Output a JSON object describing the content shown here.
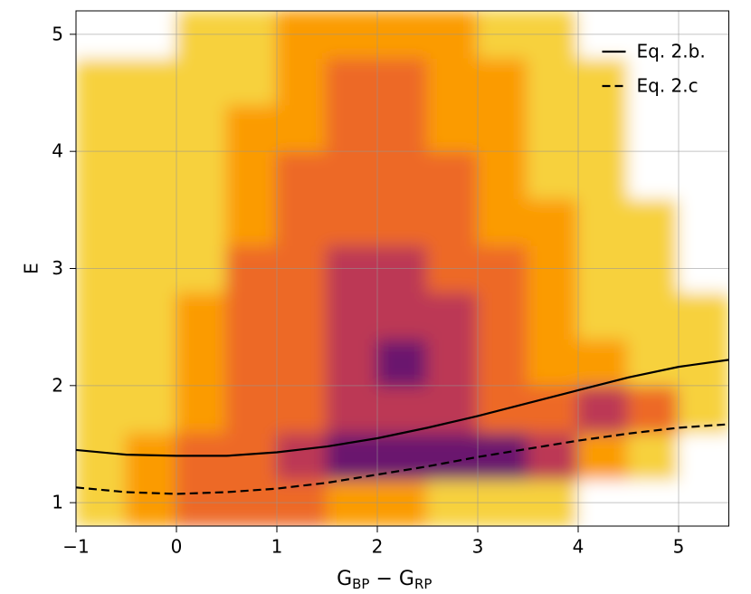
{
  "chart_data": {
    "type": "density-scatter",
    "xlabel_parts": [
      "G",
      "BP",
      " − G",
      "RP"
    ],
    "ylabel": "E",
    "xlim": [
      -1,
      5.5
    ],
    "ylim": [
      0.8,
      5.2
    ],
    "xticks": [
      {
        "value": -1,
        "label": "−1"
      },
      0,
      1,
      2,
      3,
      4,
      5
    ],
    "yticks": [
      1,
      2,
      3,
      4,
      5
    ],
    "grid": true,
    "legend": "upper right",
    "density": {
      "xbins": [
        -1,
        -0.5,
        0,
        0.5,
        1,
        1.5,
        2,
        2.5,
        3,
        3.5,
        4,
        4.5,
        5,
        5.5
      ],
      "ybins": [
        0.8,
        1.2,
        1.6,
        2.0,
        2.4,
        2.8,
        3.2,
        3.6,
        4.0,
        4.4,
        4.8,
        5.2
      ],
      "colors": [
        "#ffffff",
        "#f7d13d",
        "#fb9b06",
        "#ed6925",
        "#bc3754",
        "#6a176e"
      ],
      "z": [
        [
          1,
          2,
          3,
          3,
          3,
          2,
          2,
          1,
          1,
          1,
          0,
          0,
          0
        ],
        [
          1,
          2,
          3,
          3,
          4,
          5,
          5,
          5,
          5,
          4,
          2,
          1,
          0
        ],
        [
          1,
          1,
          2,
          3,
          3,
          4,
          4,
          4,
          3,
          3,
          4,
          3,
          1
        ],
        [
          1,
          1,
          2,
          3,
          3,
          4,
          5,
          4,
          3,
          2,
          2,
          1,
          1
        ],
        [
          1,
          1,
          2,
          3,
          3,
          4,
          4,
          4,
          3,
          2,
          1,
          1,
          1
        ],
        [
          1,
          1,
          1,
          3,
          3,
          4,
          4,
          3,
          3,
          2,
          1,
          1,
          0
        ],
        [
          1,
          1,
          1,
          2,
          3,
          3,
          3,
          3,
          2,
          2,
          1,
          1,
          0
        ],
        [
          1,
          1,
          1,
          2,
          3,
          3,
          3,
          3,
          2,
          1,
          1,
          0,
          0
        ],
        [
          1,
          1,
          1,
          2,
          2,
          3,
          3,
          2,
          2,
          1,
          1,
          0,
          0
        ],
        [
          1,
          1,
          1,
          1,
          2,
          3,
          3,
          2,
          2,
          1,
          1,
          0,
          0
        ],
        [
          0,
          0,
          1,
          1,
          2,
          2,
          2,
          2,
          1,
          1,
          0,
          0,
          0
        ]
      ]
    },
    "x": [
      -1,
      -0.5,
      0,
      0.5,
      1,
      1.5,
      2,
      2.5,
      3,
      3.5,
      4,
      4.5,
      5,
      5.5
    ],
    "series": [
      {
        "name": "Eq. 2.b.",
        "color": "#000000",
        "dash": "solid",
        "values": [
          1.45,
          1.41,
          1.4,
          1.4,
          1.43,
          1.48,
          1.55,
          1.64,
          1.74,
          1.85,
          1.96,
          2.07,
          2.16,
          2.22
        ]
      },
      {
        "name": "Eq. 2.c",
        "color": "#000000",
        "dash": "dashed",
        "values": [
          1.13,
          1.09,
          1.075,
          1.09,
          1.12,
          1.17,
          1.24,
          1.31,
          1.39,
          1.46,
          1.53,
          1.59,
          1.64,
          1.67
        ]
      }
    ]
  }
}
